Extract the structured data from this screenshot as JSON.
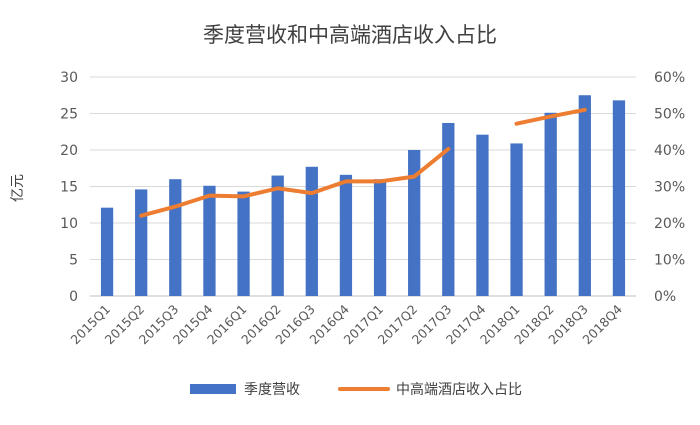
{
  "chart_data": {
    "type": "bar",
    "title": "季度营收和中高端酒店收入占比",
    "ylabel": "亿元",
    "y2label": "",
    "categories": [
      "2015Q1",
      "2015Q2",
      "2015Q3",
      "2015Q4",
      "2016Q1",
      "2016Q2",
      "2016Q3",
      "2016Q4",
      "2017Q1",
      "2017Q2",
      "2017Q3",
      "2017Q4",
      "2018Q1",
      "2018Q2",
      "2018Q3",
      "2018Q4"
    ],
    "ylim": [
      0,
      30
    ],
    "y_ticks": [
      "0",
      "5",
      "10",
      "15",
      "20",
      "25",
      "30"
    ],
    "y2lim": [
      0,
      60
    ],
    "y2_ticks": [
      "0%",
      "10%",
      "20%",
      "30%",
      "40%",
      "50%",
      "60%"
    ],
    "grid": true,
    "legend_position": "bottom",
    "series": [
      {
        "name": "季度营收",
        "type": "bar",
        "axis": "left",
        "color": "#4472C4",
        "values": [
          12.1,
          14.6,
          16.0,
          15.1,
          14.3,
          16.5,
          17.7,
          16.6,
          16.0,
          20.0,
          23.7,
          22.1,
          20.9,
          25.1,
          27.5,
          26.8
        ]
      },
      {
        "name": "中高端酒店收入占比",
        "type": "line",
        "axis": "right",
        "color": "#ED7D31",
        "segments": [
          [
            null,
            22,
            24.5,
            27.5,
            27.3,
            29.5,
            28.2,
            31.4,
            31.4,
            32.7,
            40.3,
            null,
            null,
            null,
            null,
            null
          ],
          [
            null,
            null,
            null,
            null,
            null,
            null,
            null,
            null,
            null,
            null,
            null,
            null,
            47.2,
            49.2,
            51.0,
            null
          ]
        ]
      }
    ]
  }
}
